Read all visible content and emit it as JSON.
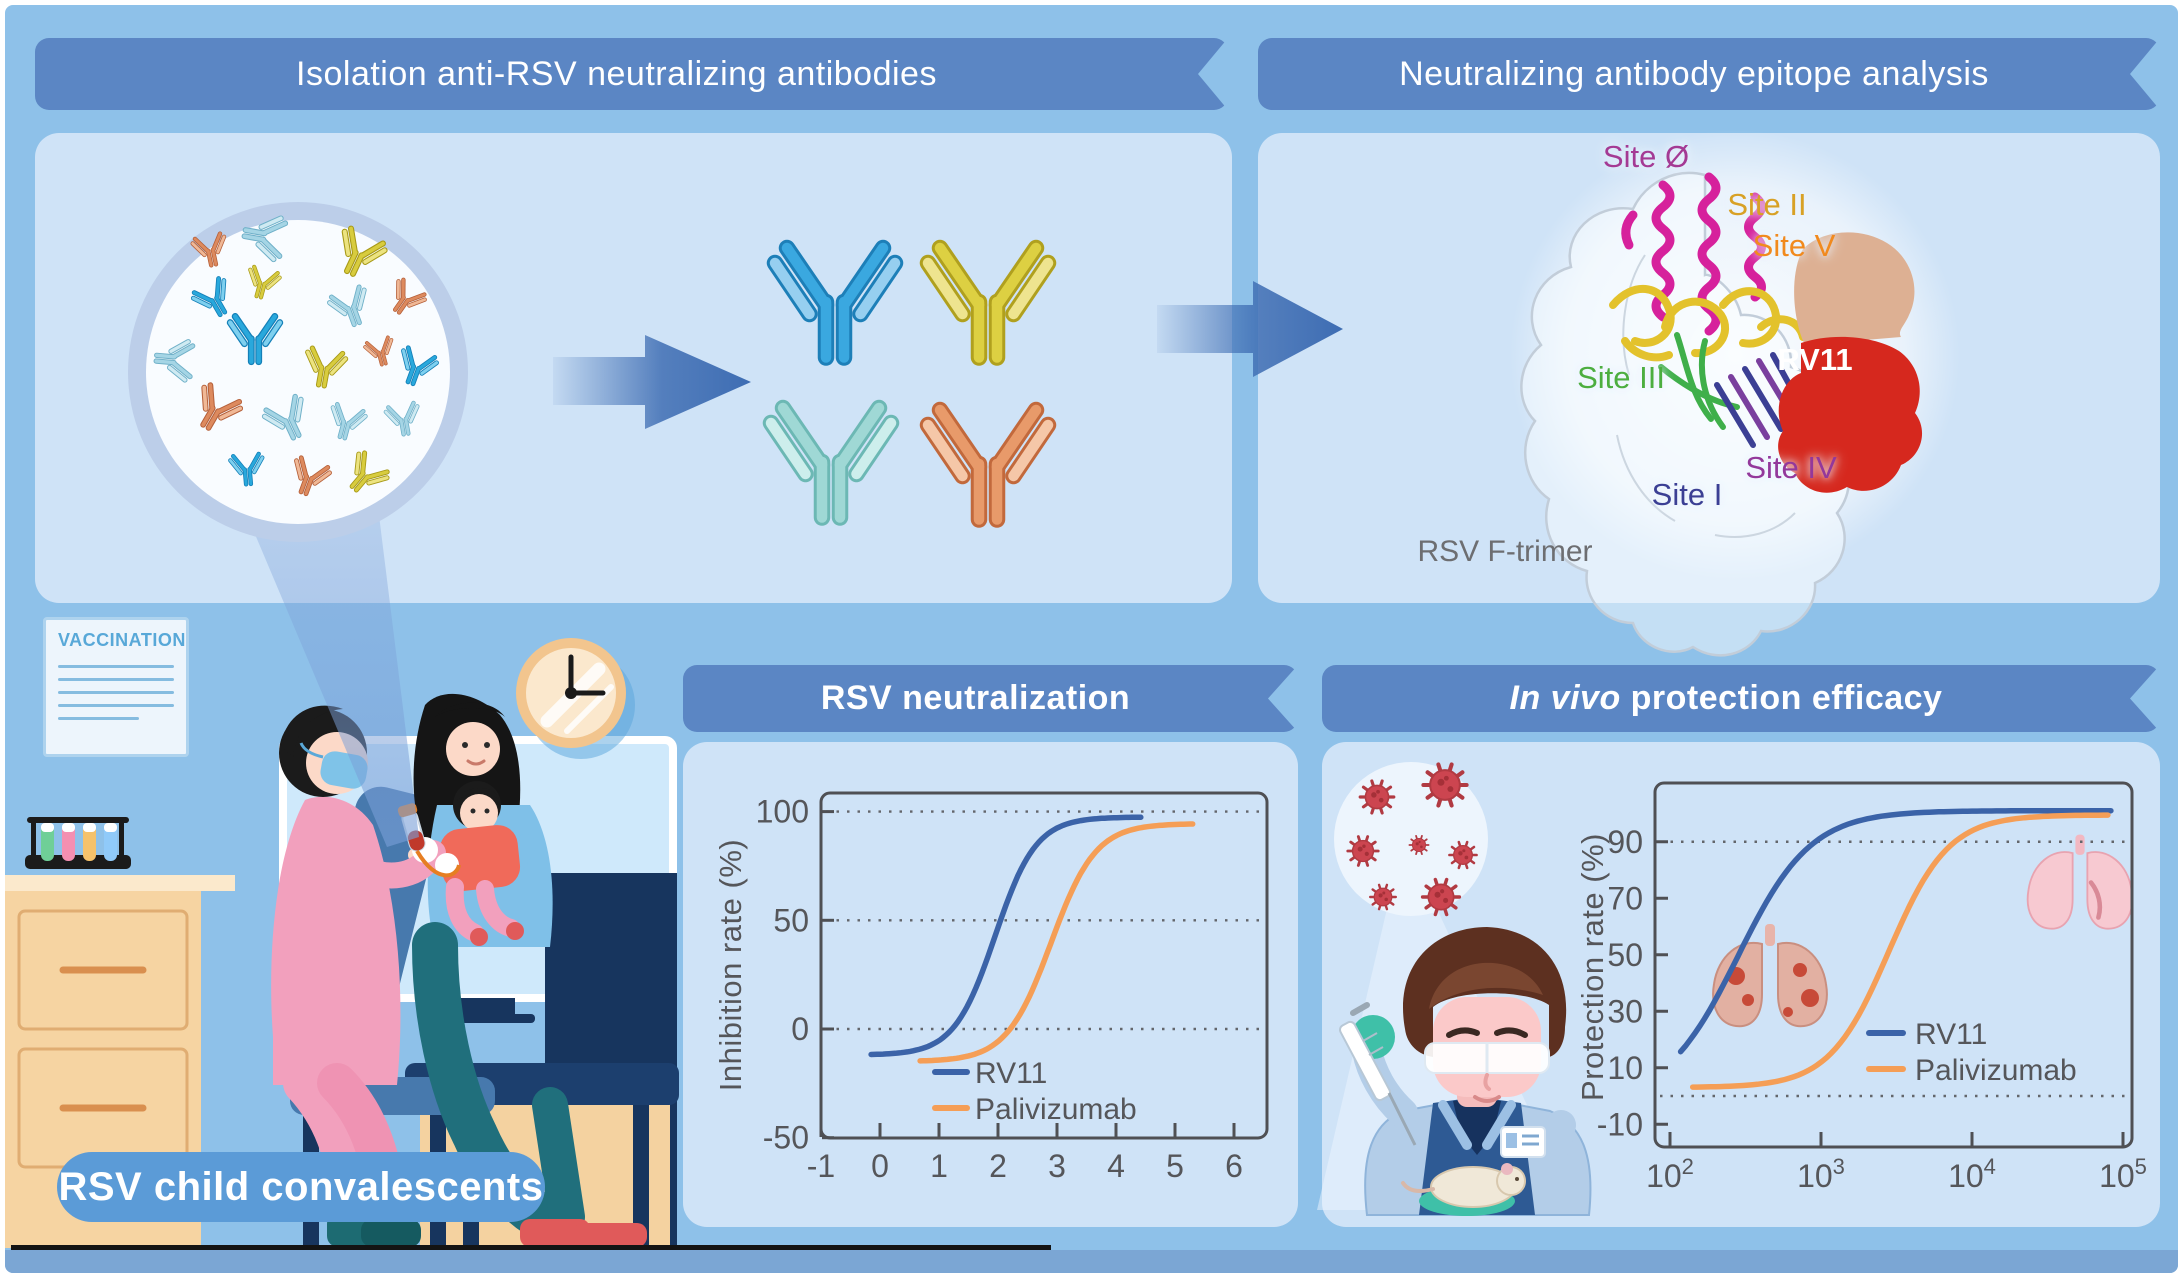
{
  "colors": {
    "background": "#8ec1e9",
    "panel": "#cfe3f7",
    "banner": "#5b86c4",
    "arrow": "#3e6db3",
    "pill": "#5b9bd7",
    "axis_text": "#55565a",
    "series_rv11": "#3b63a8",
    "series_palivizumab": "#f59e56",
    "site0": "#a43a94",
    "site2": "#d8a125",
    "site5": "#f18a1e",
    "site3": "#4cae3f",
    "site1": "#3b3f94",
    "site4": "#93389b",
    "rv11_text": "#ffffff",
    "caption_text": "#6d6e71"
  },
  "banners": {
    "isolation": "Isolation anti-RSV neutralizing antibodies",
    "epitope": "Neutralizing antibody epitope analysis",
    "neutralization": "RSV neutralization",
    "invivo_italic": "In vivo",
    "invivo_rest": " protection efficacy"
  },
  "epitope_panel": {
    "sites": {
      "site0": "Site Ø",
      "site2": "Site II",
      "site5": "Site V",
      "site3": "Site III",
      "site1": "Site I",
      "site4": "Site IV"
    },
    "antibody_label": "RV11",
    "caption": "RSV F-trimer"
  },
  "scene": {
    "poster_title": "VACCINATION",
    "label": "RSV child convalescents"
  },
  "chart_data": [
    {
      "id": "neutralization",
      "type": "line",
      "title": "RSV neutralization",
      "xlabel": "",
      "ylabel": "Inhibition rate (%)",
      "x_scale": "linear",
      "x_ticks": [
        -1,
        0,
        1,
        2,
        3,
        4,
        5,
        6
      ],
      "y_ticks": [
        -50,
        0,
        50,
        100
      ],
      "xlim": [
        -1,
        6.6
      ],
      "ylim": [
        -50,
        110
      ],
      "gridlines_y": [
        0,
        50,
        100
      ],
      "grid_style": "dotted",
      "legend_position": "inside-bottom-right",
      "series": [
        {
          "name": "RV11",
          "color": "#3b63a8",
          "model": "logistic4PL",
          "bottom": -12,
          "top": 97.5,
          "ec50": 1.95,
          "hill": 1.25,
          "x_range": [
            -0.15,
            4.42
          ],
          "anchor_points": [
            [
              -0.15,
              -11
            ],
            [
              1.1,
              -3
            ],
            [
              1.95,
              43
            ],
            [
              2.9,
              90
            ],
            [
              4.4,
              97
            ]
          ]
        },
        {
          "name": "Palivizumab",
          "color": "#f59e56",
          "model": "logistic4PL",
          "bottom": -15,
          "top": 94.5,
          "ec50": 2.9,
          "hill": 1.15,
          "x_range": [
            0.68,
            5.3
          ],
          "anchor_points": [
            [
              0.7,
              -15
            ],
            [
              2.2,
              0
            ],
            [
              2.9,
              40
            ],
            [
              3.6,
              83
            ],
            [
              5.3,
              94
            ]
          ]
        }
      ]
    },
    {
      "id": "invivo",
      "type": "line",
      "title": "In vivo protection efficacy",
      "xlabel": "",
      "ylabel": "Protection rate (%)",
      "x_scale": "log10",
      "x_tick_base": 10,
      "x_ticks_exponents": [
        2,
        3,
        4,
        5
      ],
      "y_ticks": [
        -10,
        10,
        30,
        50,
        70,
        90
      ],
      "xlim_log10": [
        1.93,
        5.07
      ],
      "ylim": [
        -22,
        112
      ],
      "gridlines_y": [
        0,
        90
      ],
      "grid_style": "dotted",
      "legend_position": "inside-right",
      "series": [
        {
          "name": "RV11",
          "color": "#3b63a8",
          "model": "logistic4PL",
          "bottom": -2,
          "top": 101,
          "ec50": 2.45,
          "hill": 1.8,
          "x_range": [
            2.07,
            4.92
          ],
          "anchor_points": [
            [
              2.07,
              15
            ],
            [
              2.45,
              50
            ],
            [
              3.0,
              91
            ],
            [
              4.0,
              100
            ],
            [
              4.9,
              101
            ]
          ]
        },
        {
          "name": "Palivizumab",
          "color": "#f59e56",
          "model": "logistic4PL",
          "bottom": 3,
          "top": 99.5,
          "ec50": 3.45,
          "hill": 2.2,
          "x_range": [
            2.15,
            4.9
          ],
          "anchor_points": [
            [
              2.2,
              3
            ],
            [
              3.0,
              9
            ],
            [
              3.45,
              51
            ],
            [
              3.8,
              86
            ],
            [
              4.9,
              99
            ]
          ]
        }
      ]
    }
  ]
}
